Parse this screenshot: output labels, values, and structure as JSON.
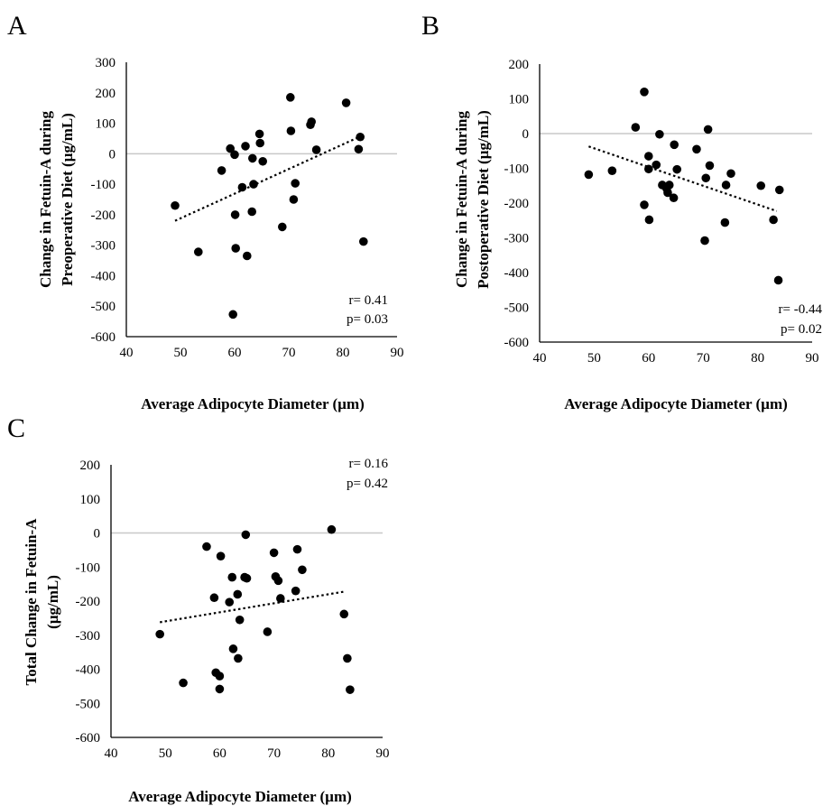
{
  "chart_data": [
    {
      "type": "scatter",
      "panel_label": "A",
      "xlabel": "Average Adipocyte Diameter (µm)",
      "ylabel": [
        "Change in Fetuin-A during",
        "Preoperative Diet (µg/mL)"
      ],
      "xlim": [
        40,
        90
      ],
      "ylim": [
        -600,
        300
      ],
      "xticks": [
        "40",
        "50",
        "60",
        "70",
        "80",
        "90"
      ],
      "yticks": [
        "300",
        "200",
        "100",
        "0",
        "-100",
        "-200",
        "-300",
        "-400",
        "-500",
        "-600"
      ],
      "stats": [
        "r= 0.41",
        "p= 0.03"
      ],
      "trendline": [
        [
          49,
          -220
        ],
        [
          83,
          55
        ]
      ],
      "points": [
        [
          49,
          -170
        ],
        [
          53.3,
          -322
        ],
        [
          57.6,
          -55
        ],
        [
          59.2,
          17
        ],
        [
          59.7,
          -527
        ],
        [
          60,
          -3
        ],
        [
          60.1,
          -200
        ],
        [
          60.2,
          -310
        ],
        [
          61.4,
          -110
        ],
        [
          62,
          25
        ],
        [
          62.3,
          -335
        ],
        [
          63.2,
          -190
        ],
        [
          63.3,
          -15
        ],
        [
          63.5,
          -100
        ],
        [
          64.6,
          65
        ],
        [
          64.7,
          35
        ],
        [
          65.2,
          -25
        ],
        [
          68.8,
          -240
        ],
        [
          70.3,
          185
        ],
        [
          70.4,
          75
        ],
        [
          70.9,
          -150
        ],
        [
          71.2,
          -97
        ],
        [
          74,
          95
        ],
        [
          74.2,
          105
        ],
        [
          75.1,
          13
        ],
        [
          80.6,
          167
        ],
        [
          82.9,
          15
        ],
        [
          83.2,
          55
        ],
        [
          83.8,
          -288
        ]
      ]
    },
    {
      "type": "scatter",
      "panel_label": "B",
      "xlabel": "Average Adipocyte Diameter (µm)",
      "ylabel": [
        "Change in Fetuin-A during",
        "Postoperative Diet (µg/mL)"
      ],
      "xlim": [
        40,
        90
      ],
      "ylim": [
        -600,
        200
      ],
      "xticks": [
        "40",
        "50",
        "60",
        "70",
        "80",
        "90"
      ],
      "yticks": [
        "200",
        "100",
        "0",
        "-100",
        "-200",
        "-300",
        "-400",
        "-500",
        "-600"
      ],
      "stats": [
        "r= -0.44",
        "p= 0.02"
      ],
      "trendline": [
        [
          49,
          -37
        ],
        [
          83.5,
          -223
        ]
      ],
      "points": [
        [
          49,
          -118
        ],
        [
          53.3,
          -107
        ],
        [
          57.6,
          18
        ],
        [
          59.2,
          120
        ],
        [
          59.2,
          -205
        ],
        [
          60,
          -65
        ],
        [
          60,
          -102
        ],
        [
          60.1,
          -248
        ],
        [
          61.4,
          -90
        ],
        [
          62,
          -2
        ],
        [
          62.5,
          -148
        ],
        [
          63.3,
          -158
        ],
        [
          63.5,
          -170
        ],
        [
          63.8,
          -148
        ],
        [
          64.6,
          -185
        ],
        [
          64.7,
          -32
        ],
        [
          65.2,
          -103
        ],
        [
          68.8,
          -45
        ],
        [
          70.3,
          -308
        ],
        [
          70.5,
          -128
        ],
        [
          70.9,
          12
        ],
        [
          71.2,
          -92
        ],
        [
          74,
          -256
        ],
        [
          74.2,
          -148
        ],
        [
          75.1,
          -115
        ],
        [
          80.6,
          -150
        ],
        [
          82.9,
          -248
        ],
        [
          83.8,
          -422
        ],
        [
          84,
          -162
        ]
      ]
    },
    {
      "type": "scatter",
      "panel_label": "C",
      "xlabel": "Average Adipocyte Diameter (µm)",
      "ylabel": [
        "Total Change in Fetuin-A",
        "(µg/mL)"
      ],
      "xlim": [
        40,
        90
      ],
      "ylim": [
        -600,
        200
      ],
      "xticks": [
        "40",
        "50",
        "60",
        "70",
        "80",
        "90"
      ],
      "yticks": [
        "200",
        "100",
        "0",
        "-100",
        "-200",
        "-300",
        "-400",
        "-500",
        "-600"
      ],
      "stats": [
        "r= 0.16",
        "p= 0.42"
      ],
      "trendline": [
        [
          49,
          -262
        ],
        [
          83,
          -172
        ]
      ],
      "points": [
        [
          49,
          -297
        ],
        [
          53.3,
          -440
        ],
        [
          57.6,
          -40
        ],
        [
          59,
          -190
        ],
        [
          59.3,
          -410
        ],
        [
          60,
          -420
        ],
        [
          60,
          -458
        ],
        [
          60.2,
          -68
        ],
        [
          61.8,
          -203
        ],
        [
          62.3,
          -130
        ],
        [
          62.5,
          -340
        ],
        [
          63.3,
          -180
        ],
        [
          63.4,
          -368
        ],
        [
          63.7,
          -255
        ],
        [
          64.6,
          -130
        ],
        [
          64.8,
          -5
        ],
        [
          65,
          -133
        ],
        [
          68.8,
          -290
        ],
        [
          70,
          -58
        ],
        [
          70.3,
          -128
        ],
        [
          70.8,
          -140
        ],
        [
          71.2,
          -192
        ],
        [
          74,
          -170
        ],
        [
          74.3,
          -48
        ],
        [
          75.2,
          -108
        ],
        [
          80.6,
          10
        ],
        [
          82.9,
          -238
        ],
        [
          83.5,
          -368
        ],
        [
          84,
          -460
        ]
      ]
    }
  ]
}
